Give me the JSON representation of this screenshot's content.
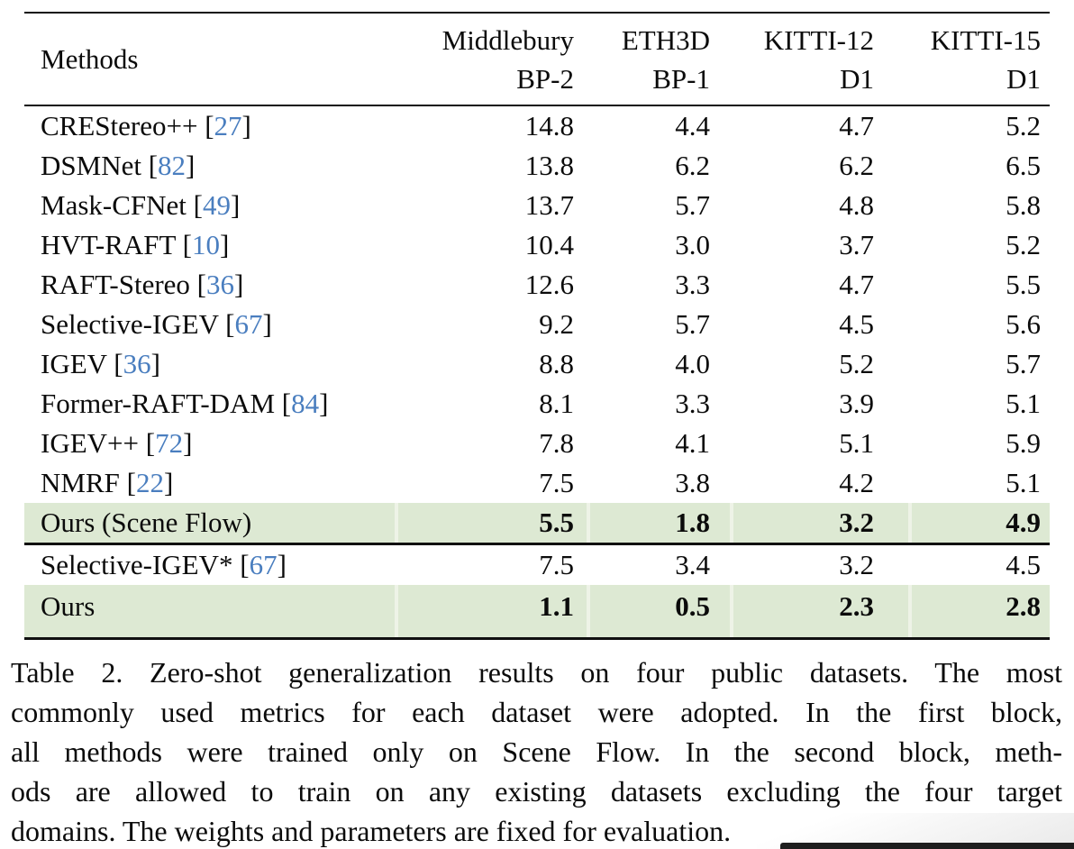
{
  "colors": {
    "highlight_green": "#dde9d3",
    "cell_gap": "#eef3e7",
    "citation_blue": "#4a7ebf",
    "rule_black": "#101010"
  },
  "table": {
    "header": {
      "methods_label": "Methods",
      "columns": [
        {
          "dataset": "Middlebury",
          "metric": "BP-2"
        },
        {
          "dataset": "ETH3D",
          "metric": "BP-1"
        },
        {
          "dataset": "KITTI-12",
          "metric": "D1"
        },
        {
          "dataset": "KITTI-15",
          "metric": "D1"
        }
      ]
    },
    "blocks": [
      {
        "rows": [
          {
            "method": "CREStereo++",
            "citation": "27",
            "values": [
              "14.8",
              "4.4",
              "4.7",
              "5.2"
            ],
            "highlight": false,
            "bold": false
          },
          {
            "method": "DSMNet",
            "citation": "82",
            "values": [
              "13.8",
              "6.2",
              "6.2",
              "6.5"
            ],
            "highlight": false,
            "bold": false
          },
          {
            "method": "Mask-CFNet",
            "citation": "49",
            "values": [
              "13.7",
              "5.7",
              "4.8",
              "5.8"
            ],
            "highlight": false,
            "bold": false
          },
          {
            "method": "HVT-RAFT",
            "citation": "10",
            "values": [
              "10.4",
              "3.0",
              "3.7",
              "5.2"
            ],
            "highlight": false,
            "bold": false
          },
          {
            "method": "RAFT-Stereo",
            "citation": "36",
            "values": [
              "12.6",
              "3.3",
              "4.7",
              "5.5"
            ],
            "highlight": false,
            "bold": false
          },
          {
            "method": "Selective-IGEV",
            "citation": "67",
            "values": [
              "9.2",
              "5.7",
              "4.5",
              "5.6"
            ],
            "highlight": false,
            "bold": false
          },
          {
            "method": "IGEV",
            "citation": "36",
            "values": [
              "8.8",
              "4.0",
              "5.2",
              "5.7"
            ],
            "highlight": false,
            "bold": false
          },
          {
            "method": "Former-RAFT-DAM",
            "citation": "84",
            "values": [
              "8.1",
              "3.3",
              "3.9",
              "5.1"
            ],
            "highlight": false,
            "bold": false
          },
          {
            "method": "IGEV++",
            "citation": "72",
            "values": [
              "7.8",
              "4.1",
              "5.1",
              "5.9"
            ],
            "highlight": false,
            "bold": false
          },
          {
            "method": "NMRF",
            "citation": "22",
            "values": [
              "7.5",
              "3.8",
              "4.2",
              "5.1"
            ],
            "highlight": false,
            "bold": false
          },
          {
            "method": "Ours (Scene Flow)",
            "citation": "",
            "values": [
              "5.5",
              "1.8",
              "3.2",
              "4.9"
            ],
            "highlight": true,
            "bold": true
          }
        ]
      },
      {
        "rows": [
          {
            "method": "Selective-IGEV*",
            "citation": "67",
            "values": [
              "7.5",
              "3.4",
              "3.2",
              "4.5"
            ],
            "highlight": false,
            "bold": false
          },
          {
            "method": "Ours",
            "citation": "",
            "values": [
              "1.1",
              "0.5",
              "2.3",
              "2.8"
            ],
            "highlight": true,
            "bold": true
          }
        ]
      }
    ]
  },
  "caption": {
    "lines": [
      "Table 2. Zero-shot generalization results on four public datasets. The most",
      "commonly used metrics for each dataset were adopted. In the first block,",
      "all methods were trained only on Scene Flow. In the second block, meth-",
      "ods are allowed to train on any existing datasets excluding the four target",
      "domains. The weights and parameters are fixed for evaluation."
    ]
  }
}
